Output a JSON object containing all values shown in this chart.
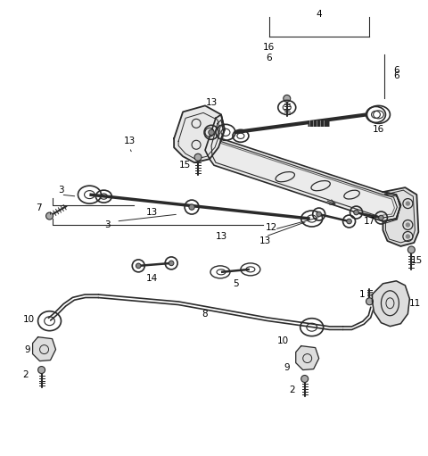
{
  "background_color": "#ffffff",
  "line_color": "#2a2a2a",
  "label_color": "#000000",
  "fig_width": 4.8,
  "fig_height": 5.11,
  "dpi": 100
}
